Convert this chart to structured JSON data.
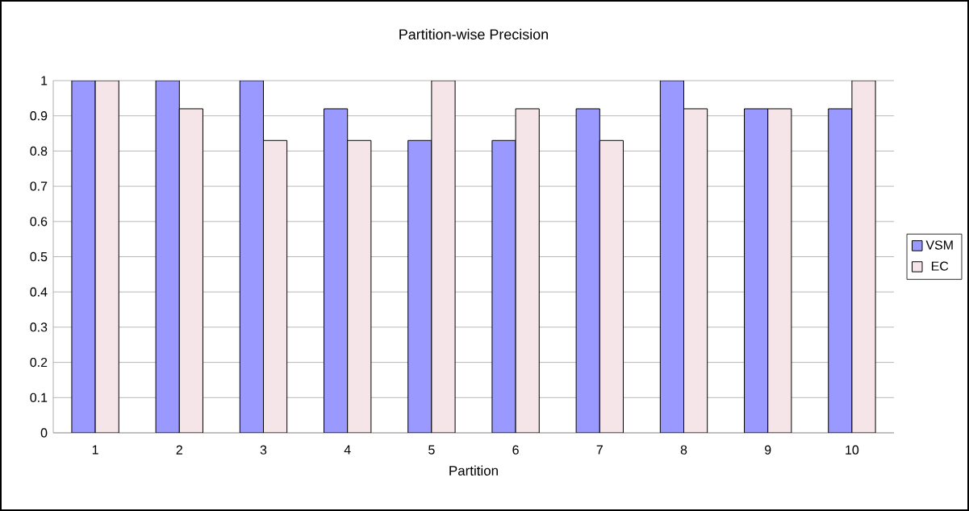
{
  "chart_data": {
    "type": "bar",
    "title": "Partition-wise Precision",
    "xlabel": "Partition",
    "categories": [
      "1",
      "2",
      "3",
      "4",
      "5",
      "6",
      "7",
      "8",
      "9",
      "10"
    ],
    "series": [
      {
        "name": "VSM",
        "color": "#9999ff",
        "values": [
          1,
          1,
          1,
          0.92,
          0.83,
          0.83,
          0.92,
          1,
          0.92,
          0.92
        ]
      },
      {
        "name": "EC",
        "color": "#f5e4e8",
        "values": [
          1,
          0.92,
          0.83,
          0.83,
          1,
          0.92,
          0.83,
          0.92,
          0.92,
          1
        ]
      }
    ],
    "ylim": [
      0,
      1
    ],
    "yticks": [
      0,
      0.1,
      0.2,
      0.3,
      0.4,
      0.5,
      0.6,
      0.7,
      0.8,
      0.9,
      1
    ],
    "grid": "y",
    "legend": "right"
  }
}
